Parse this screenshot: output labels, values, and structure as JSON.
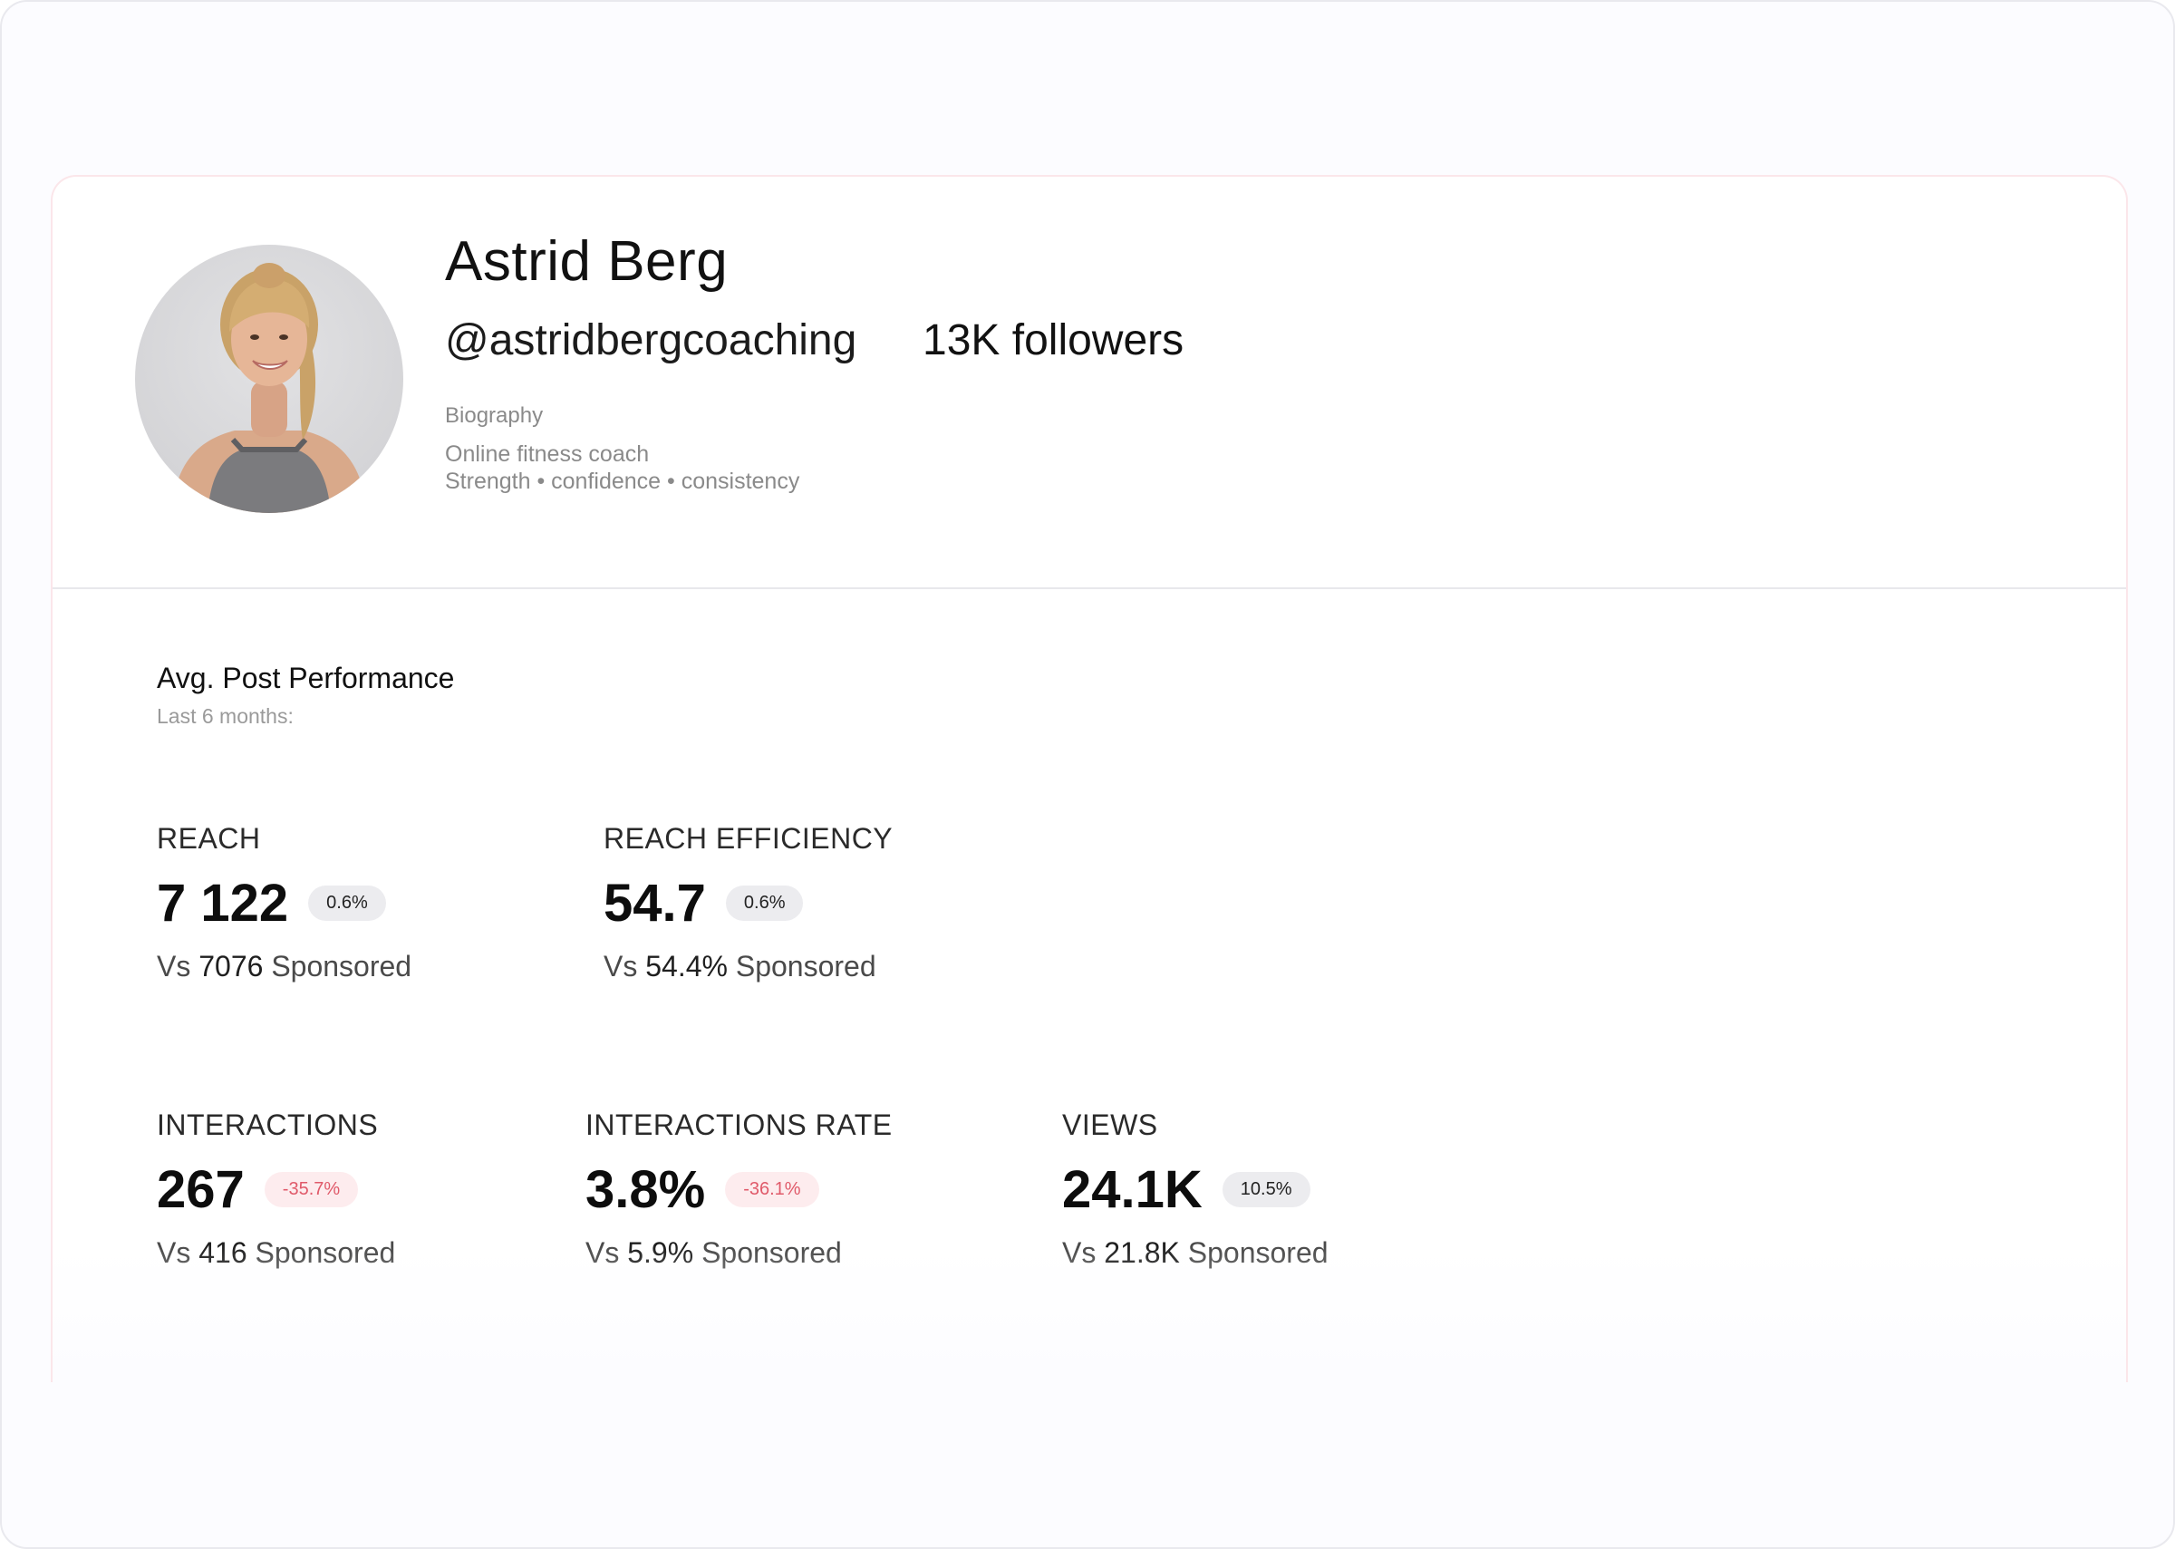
{
  "profile": {
    "name": "Astrid Berg",
    "handle": "@astridbergcoaching",
    "followers": "13K followers",
    "biography_label": "Biography",
    "bio_line1": "Online fitness coach",
    "bio_line2": "Strength • confidence • consistency",
    "avatar_icon": "profile-photo"
  },
  "performance": {
    "title": "Avg. Post Performance",
    "subtitle": "Last 6 months:",
    "metrics": [
      {
        "label": "REACH",
        "value": "7 122",
        "badge": "0.6%",
        "badge_type": "neutral",
        "vs_prefix": "Vs",
        "vs_value": "7076",
        "vs_suffix": "Sponsored"
      },
      {
        "label": "REACH EFFICIENCY",
        "value": "54.7",
        "badge": "0.6%",
        "badge_type": "neutral",
        "vs_prefix": "Vs",
        "vs_value": "54.4%",
        "vs_suffix": "Sponsored"
      },
      {
        "label": "INTERACTIONS",
        "value": "267",
        "badge": "-35.7%",
        "badge_type": "negative",
        "vs_prefix": "Vs",
        "vs_value": "416",
        "vs_suffix": "Sponsored"
      },
      {
        "label": "INTERACTIONS RATE",
        "value": "3.8%",
        "badge": "-36.1%",
        "badge_type": "negative",
        "vs_prefix": "Vs",
        "vs_value": "5.9%",
        "vs_suffix": "Sponsored"
      },
      {
        "label": "VIEWS",
        "value": "24.1K",
        "badge": "10.5%",
        "badge_type": "neutral",
        "vs_prefix": "Vs",
        "vs_value": "21.8K",
        "vs_suffix": "Sponsored"
      }
    ]
  },
  "colors": {
    "negative_badge_bg": "#fdecee",
    "negative_badge_text": "#e05a6a",
    "neutral_badge_bg": "#ececef"
  }
}
